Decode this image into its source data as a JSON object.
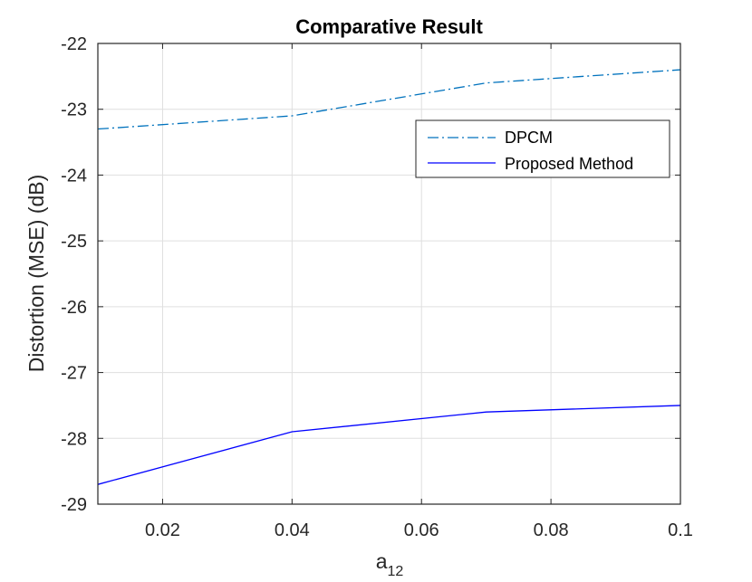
{
  "chart_data": {
    "type": "line",
    "title": "Comparative Result",
    "xlabel": "a",
    "xlabel_subscript": "12",
    "ylabel": "Distortion (MSE) (dB)",
    "xlim": [
      0.01,
      0.1
    ],
    "ylim": [
      -29,
      -22
    ],
    "xticks": [
      0.02,
      0.04,
      0.06,
      0.08,
      0.1
    ],
    "xtick_labels": [
      "0.02",
      "0.04",
      "0.06",
      "0.08",
      "0.1"
    ],
    "yticks": [
      -22,
      -23,
      -24,
      -25,
      -26,
      -27,
      -28,
      -29
    ],
    "ytick_labels": [
      "-22",
      "-23",
      "-24",
      "-25",
      "-26",
      "-27",
      "-28",
      "-29"
    ],
    "grid": true,
    "legend_position": "top-right",
    "series": [
      {
        "name": "DPCM",
        "color": "#0072BD",
        "line_style": "dash-dot",
        "x": [
          0.01,
          0.04,
          0.07,
          0.1
        ],
        "values": [
          -23.3,
          -23.1,
          -22.6,
          -22.4
        ]
      },
      {
        "name": "Proposed Method",
        "color": "#0000FF",
        "line_style": "solid",
        "x": [
          0.01,
          0.04,
          0.07,
          0.1
        ],
        "values": [
          -28.7,
          -27.9,
          -27.6,
          -27.5
        ]
      }
    ]
  }
}
